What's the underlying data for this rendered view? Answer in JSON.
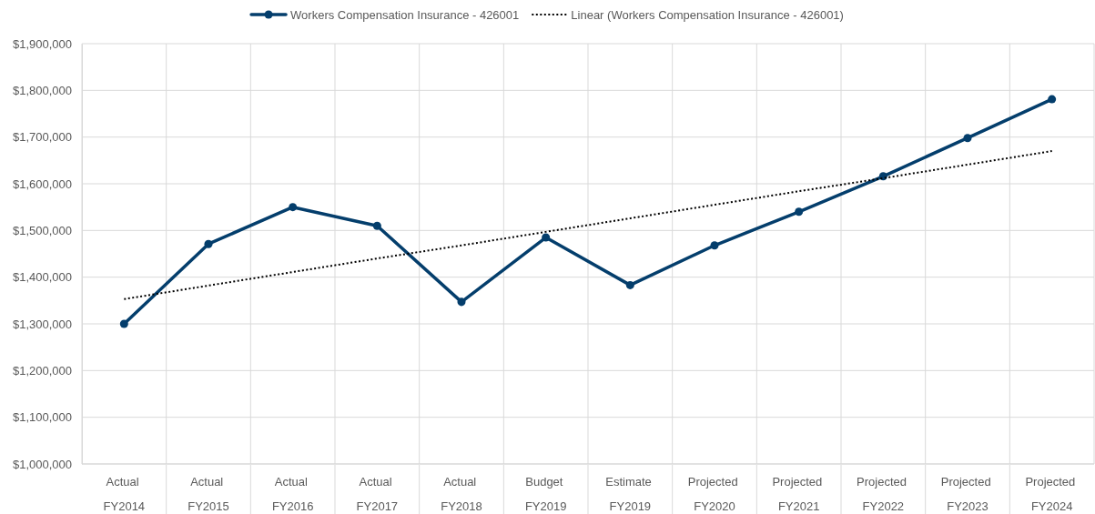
{
  "chart_data": {
    "type": "line",
    "categories": [
      "Actual FY2014",
      "Actual FY2015",
      "Actual FY2016",
      "Actual FY2017",
      "Actual FY2018",
      "Budget FY2019",
      "Estimate FY2019",
      "Projected FY2020",
      "Projected FY2021",
      "Projected FY2022",
      "Projected FY2023",
      "Projected FY2024"
    ],
    "series": [
      {
        "name": "Workers Compensation Insurance - 426001",
        "color": "#043e6c",
        "marker": "circle",
        "line_style": "solid",
        "values": [
          1300000,
          1471000,
          1550000,
          1510000,
          1347000,
          1485000,
          1383000,
          1468000,
          1540000,
          1616000,
          1698000,
          1781000
        ]
      },
      {
        "name": "Linear (Workers Compensation Insurance - 426001)",
        "type": "line",
        "color": "#000000",
        "marker": "none",
        "line_style": "dotted",
        "values": [
          1353000,
          1382000,
          1411000,
          1440000,
          1468000,
          1497000,
          1526000,
          1555000,
          1584000,
          1612000,
          1641000,
          1670000
        ]
      }
    ],
    "ylim": [
      1000000,
      1900000
    ],
    "yticks": [
      {
        "value": 1000000,
        "label": "$1,000,000"
      },
      {
        "value": 1100000,
        "label": "$1,100,000"
      },
      {
        "value": 1200000,
        "label": "$1,200,000"
      },
      {
        "value": 1300000,
        "label": "$1,300,000"
      },
      {
        "value": 1400000,
        "label": "$1,400,000"
      },
      {
        "value": 1500000,
        "label": "$1,500,000"
      },
      {
        "value": 1600000,
        "label": "$1,600,000"
      },
      {
        "value": 1700000,
        "label": "$1,700,000"
      },
      {
        "value": 1800000,
        "label": "$1,800,000"
      },
      {
        "value": 1900000,
        "label": "$1,900,000"
      }
    ],
    "grid": true,
    "legend": "top"
  }
}
